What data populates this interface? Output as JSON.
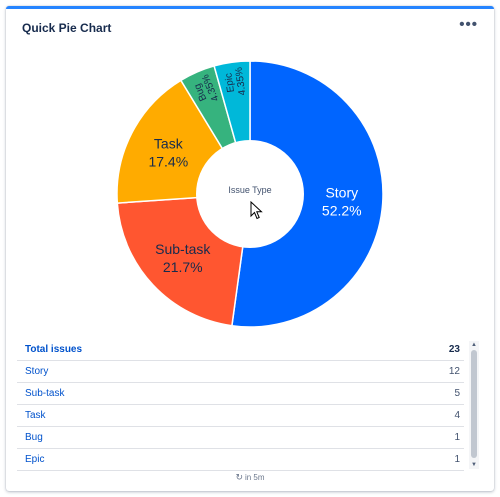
{
  "header": {
    "title": "Quick Pie Chart",
    "menu_label": "•••"
  },
  "chart_data": {
    "type": "pie",
    "center_label": "Issue Type",
    "slices": [
      {
        "label": "Story",
        "value": 12,
        "percent": "52.2%",
        "color": "#0065ff",
        "text_color": "#ffffff"
      },
      {
        "label": "Sub-task",
        "value": 5,
        "percent": "21.7%",
        "color": "#ff5630",
        "text_color": "#172b4d"
      },
      {
        "label": "Task",
        "value": 4,
        "percent": "17.4%",
        "color": "#ffab00",
        "text_color": "#172b4d"
      },
      {
        "label": "Bug",
        "value": 1,
        "percent": "4.35%",
        "color": "#36b37e",
        "text_color": "#172b4d"
      },
      {
        "label": "Epic",
        "value": 1,
        "percent": "4.35%",
        "color": "#00b8d9",
        "text_color": "#172b4d"
      }
    ]
  },
  "table": {
    "total_label": "Total issues",
    "total_value": "23",
    "rows": [
      {
        "label": "Story",
        "value": "12"
      },
      {
        "label": "Sub-task",
        "value": "5"
      },
      {
        "label": "Task",
        "value": "4"
      },
      {
        "label": "Bug",
        "value": "1"
      },
      {
        "label": "Epic",
        "value": "1"
      }
    ]
  },
  "footer": {
    "refresh_text": "in 5m",
    "refresh_icon": "refresh-icon"
  }
}
